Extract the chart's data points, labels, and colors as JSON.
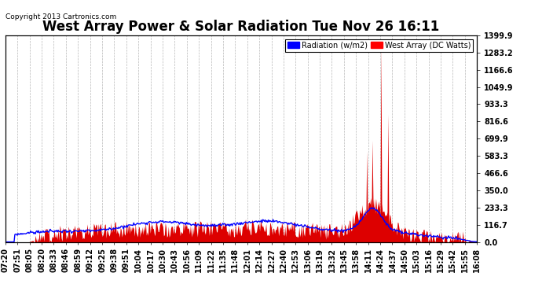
{
  "title": "West Array Power & Solar Radiation Tue Nov 26 16:11",
  "copyright": "Copyright 2013 Cartronics.com",
  "legend_radiation": "Radiation (w/m2)",
  "legend_west": "West Array (DC Watts)",
  "yticks": [
    0.0,
    116.7,
    233.3,
    350.0,
    466.6,
    583.3,
    699.9,
    816.6,
    933.3,
    1049.9,
    1166.6,
    1283.2,
    1399.9
  ],
  "ymax": 1399.9,
  "background_color": "#ffffff",
  "grid_color": "#b0b0b0",
  "radiation_color": "#0000ff",
  "west_color": "#dd0000",
  "title_fontsize": 12,
  "tick_fontsize": 7,
  "xtick_labels": [
    "07:20",
    "07:51",
    "08:05",
    "08:20",
    "08:33",
    "08:46",
    "08:59",
    "09:12",
    "09:25",
    "09:38",
    "09:51",
    "10:04",
    "10:17",
    "10:30",
    "10:43",
    "10:56",
    "11:09",
    "11:22",
    "11:35",
    "11:48",
    "12:01",
    "12:14",
    "12:27",
    "12:40",
    "12:53",
    "13:06",
    "13:19",
    "13:32",
    "13:45",
    "13:58",
    "14:11",
    "14:24",
    "14:37",
    "14:50",
    "15:03",
    "15:16",
    "15:29",
    "15:42",
    "15:55",
    "16:08"
  ]
}
